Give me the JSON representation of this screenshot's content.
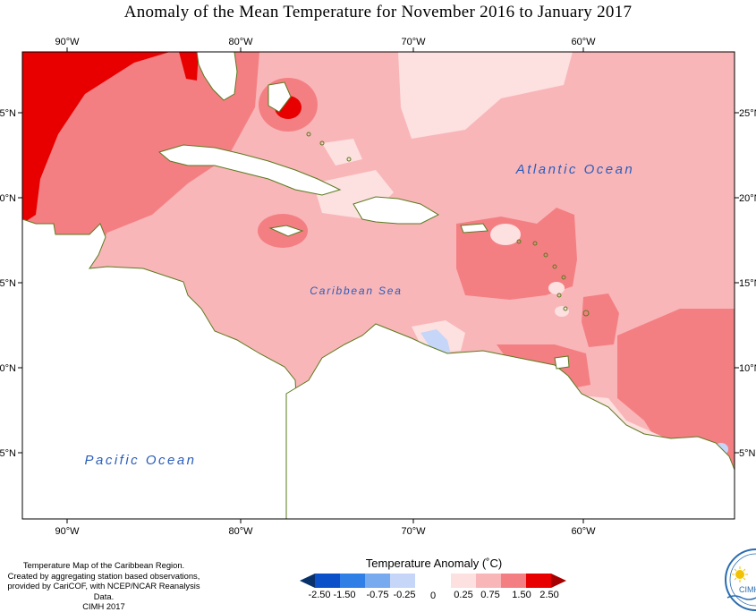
{
  "title": "Anomaly of the Mean Temperature for November 2016 to January 2017",
  "axes": {
    "top_lon_labels": [
      "90°W",
      "80°W",
      "70°W",
      "60°W"
    ],
    "bottom_lon_labels": [
      "90°W",
      "80°W",
      "70°W",
      "60°W"
    ],
    "left_lat_labels": [
      "25°N",
      "20°N",
      "15°N",
      "10°N",
      "5°N"
    ],
    "right_lat_labels": [
      "25°N",
      "20°N",
      "15°N",
      "10°N",
      "5°N"
    ]
  },
  "map_labels": {
    "atlantic": "Atlantic Ocean",
    "caribbean": "Caribbean Sea",
    "pacific": "Pacific Ocean"
  },
  "legend": {
    "title": "Temperature Anomaly (˚C)",
    "tick_labels": [
      "-2.50",
      "-1.50",
      "-0.75",
      "-0.25",
      "0",
      "0.25",
      "0.75",
      "1.50",
      "2.50"
    ],
    "colors": [
      "#08306b",
      "#0b50c8",
      "#2f7fe6",
      "#77aaee",
      "#c6d6f8",
      "#ffffff",
      "#fde0e0",
      "#f9b6b8",
      "#f47f83",
      "#e80000",
      "#a60000"
    ]
  },
  "footer": {
    "line1": "Temperature Map of the Caribbean Region.",
    "line2": "Created by aggregating station based observations,",
    "line3": "provided by CariCOF, with NCEP/NCAR Reanalysis Data.",
    "line4": "CIMH 2017"
  },
  "logo": {
    "text": "CIMH"
  },
  "colors": {
    "land": "#ffffff",
    "coast": "#5a7a1e",
    "anomaly_0_25": "#fde0e0",
    "anomaly_0_75": "#f9b6b8",
    "anomaly_1_50": "#f47f83",
    "anomaly_2_50": "#e80000",
    "anomaly_above": "#a60000",
    "anomaly_neg_light": "#c6d6f8"
  }
}
